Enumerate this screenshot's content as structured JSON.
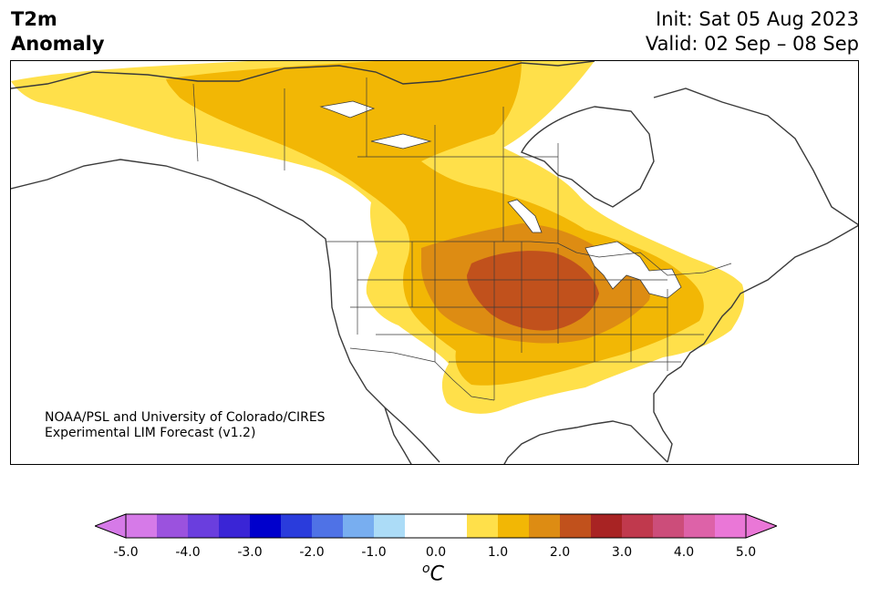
{
  "header": {
    "title_line1": "T2m",
    "title_line2": "Anomaly",
    "init_label": "Init: Sat 05 Aug 2023",
    "valid_label": "Valid: 02 Sep – 08 Sep"
  },
  "credit": {
    "line1": "NOAA/PSL and University of Colorado/CIRES",
    "line2": "Experimental LIM Forecast (v1.2)"
  },
  "colorbar": {
    "unit_base": "C",
    "unit_sup": "o",
    "tick_labels": [
      "-5.0",
      "-4.0",
      "-3.0",
      "-2.0",
      "-1.0",
      "0.0",
      "1.0",
      "2.0",
      "3.0",
      "4.0",
      "5.0"
    ],
    "colors": [
      "#d67ae8",
      "#9b52de",
      "#6a3ede",
      "#3a25d6",
      "#0000cc",
      "#2a3cdc",
      "#4f72e6",
      "#78aef0",
      "#acdcf7",
      "#ffffff",
      "#ffffff",
      "#ffe04a",
      "#f2b705",
      "#dd8c13",
      "#c1511c",
      "#a82323",
      "#c0394d",
      "#cc4d7a",
      "#dd62a8",
      "#ea77d7"
    ]
  },
  "map": {
    "anomaly_colors": {
      "weak": "#ffe04a",
      "moderate": "#f2b705",
      "strong": "#dd8c13",
      "max": "#c1511c"
    },
    "coast_color": "#3a3a3a"
  }
}
